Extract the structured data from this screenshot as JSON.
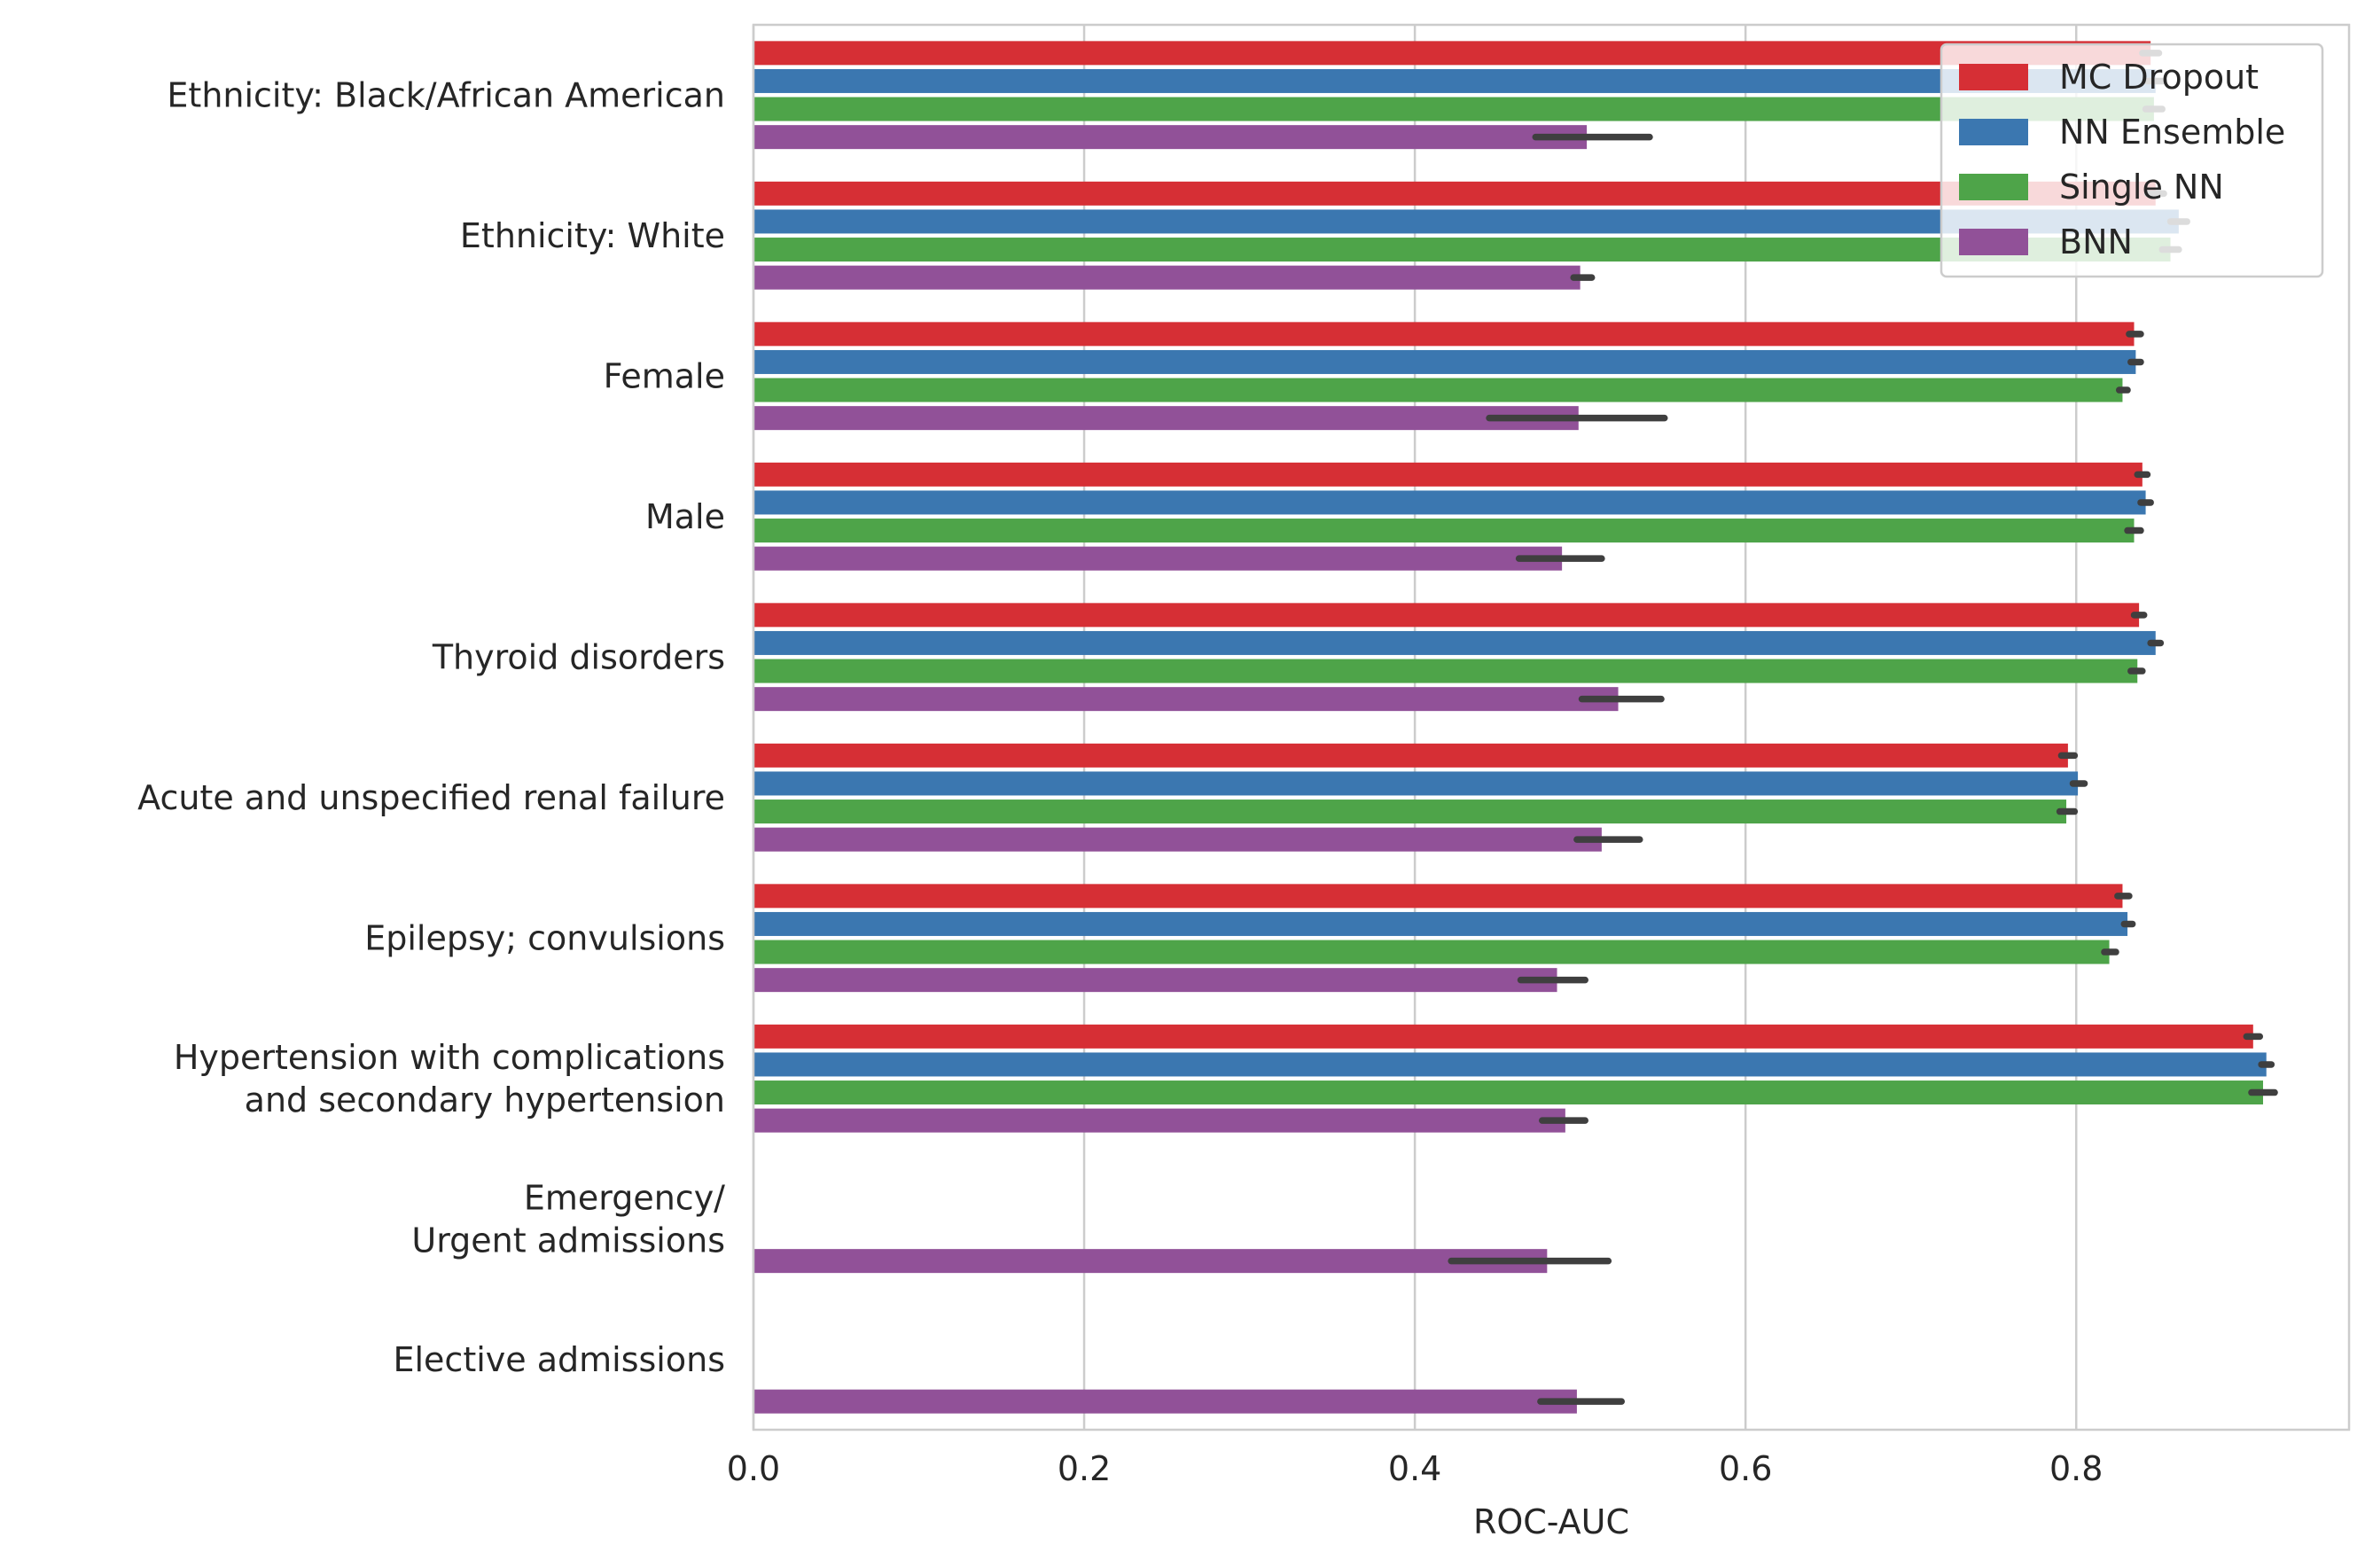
{
  "chart_data": {
    "type": "bar",
    "orientation": "horizontal",
    "xlabel": "ROC-AUC",
    "ylabel": "",
    "xlim": [
      0,
      0.965
    ],
    "xticks": [
      0.0,
      0.2,
      0.4,
      0.6,
      0.8
    ],
    "xtick_labels": [
      "0.0",
      "0.2",
      "0.4",
      "0.6",
      "0.8"
    ],
    "grid": "vertical",
    "legend_position": "top-right",
    "categories": [
      [
        "Ethnicity: Black/African American"
      ],
      [
        "Ethnicity: White"
      ],
      [
        "Female"
      ],
      [
        "Male"
      ],
      [
        "Thyroid disorders"
      ],
      [
        "Acute and unspecified renal failure"
      ],
      [
        "Epilepsy; convulsions"
      ],
      [
        "Hypertension with complications ",
        "and secondary hypertension"
      ],
      [
        "Emergency/",
        "Urgent admissions"
      ],
      [
        "Elective admissions"
      ]
    ],
    "series": [
      {
        "name": "MC Dropout",
        "color": "#d62f35",
        "values": [
          0.845,
          0.848,
          0.835,
          0.84,
          0.838,
          0.795,
          0.828,
          0.907,
          null,
          null
        ],
        "ci": [
          [
            0.84,
            0.85
          ],
          [
            0.843,
            0.853
          ],
          [
            0.832,
            0.839
          ],
          [
            0.837,
            0.843
          ],
          [
            0.835,
            0.841
          ],
          [
            0.791,
            0.799
          ],
          [
            0.825,
            0.832
          ],
          [
            0.903,
            0.911
          ],
          null,
          null
        ]
      },
      {
        "name": "NN Ensemble",
        "color": "#3b77b0",
        "values": [
          0.848,
          0.862,
          0.836,
          0.842,
          0.848,
          0.801,
          0.831,
          0.915,
          null,
          null
        ],
        "ci": [
          [
            0.843,
            0.853
          ],
          [
            0.857,
            0.867
          ],
          [
            0.833,
            0.839
          ],
          [
            0.839,
            0.845
          ],
          [
            0.845,
            0.851
          ],
          [
            0.798,
            0.805
          ],
          [
            0.829,
            0.834
          ],
          [
            0.912,
            0.918
          ],
          null,
          null
        ]
      },
      {
        "name": "Single NN",
        "color": "#4ea449",
        "values": [
          0.847,
          0.857,
          0.828,
          0.835,
          0.837,
          0.794,
          0.82,
          0.913,
          null,
          null
        ],
        "ci": [
          [
            0.842,
            0.852
          ],
          [
            0.852,
            0.862
          ],
          [
            0.826,
            0.831
          ],
          [
            0.831,
            0.839
          ],
          [
            0.833,
            0.84
          ],
          [
            0.79,
            0.799
          ],
          [
            0.817,
            0.824
          ],
          [
            0.906,
            0.92
          ],
          null,
          null
        ]
      },
      {
        "name": "BNN",
        "color": "#915198",
        "values": [
          0.504,
          0.5,
          0.499,
          0.489,
          0.523,
          0.513,
          0.486,
          0.491,
          0.48,
          0.498
        ],
        "ci": [
          [
            0.473,
            0.542
          ],
          [
            0.496,
            0.507
          ],
          [
            0.445,
            0.551
          ],
          [
            0.463,
            0.513
          ],
          [
            0.501,
            0.549
          ],
          [
            0.498,
            0.536
          ],
          [
            0.464,
            0.503
          ],
          [
            0.477,
            0.503
          ],
          [
            0.422,
            0.517
          ],
          [
            0.476,
            0.525
          ]
        ]
      }
    ]
  }
}
